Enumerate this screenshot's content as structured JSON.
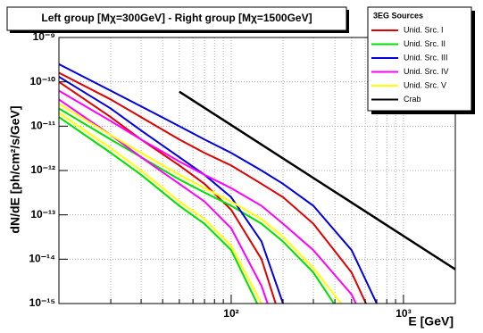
{
  "chart_data": {
    "type": "line",
    "title": "Left group [Mχ=300GeV] - Right group [Mχ=1500GeV]",
    "ylabel": "dN/dE [ph/cm²/s/GeV]",
    "xlabel": "E [GeV]",
    "legend_title": "3EG Sources",
    "legend": "top-right",
    "log_x": true,
    "log_y": true,
    "grid": true,
    "xlim": [
      10,
      2000
    ],
    "ylim": [
      1e-15,
      1e-09
    ],
    "xticks": [
      {
        "value": 100,
        "label": "10²"
      },
      {
        "value": 1000,
        "label": "10³"
      }
    ],
    "xminor": [
      20,
      30,
      40,
      50,
      60,
      70,
      80,
      90,
      200,
      300,
      400,
      500,
      600,
      700,
      800,
      900
    ],
    "yticks": [
      {
        "value": 1e-15,
        "label": "10⁻¹⁵"
      },
      {
        "value": 1e-14,
        "label": "10⁻¹⁴"
      },
      {
        "value": 1e-13,
        "label": "10⁻¹³"
      },
      {
        "value": 1e-12,
        "label": "10⁻¹²"
      },
      {
        "value": 1e-11,
        "label": "10⁻¹¹"
      },
      {
        "value": 1e-10,
        "label": "10⁻¹⁰"
      },
      {
        "value": 1e-09,
        "label": "10⁻⁹"
      }
    ],
    "x": [
      10,
      20,
      30,
      50,
      70,
      100,
      150,
      200,
      300,
      500,
      700
    ],
    "series": [
      {
        "name": "Unid. Src. I",
        "color": "#e00000",
        "values": [
          1e-10,
          1.6e-11,
          5e-12,
          1.3e-12,
          5e-13,
          1.3e-13,
          1e-14,
          3e-16,
          null,
          null,
          null
        ],
        "values_right": [
          1.6e-10,
          4e-11,
          1.6e-11,
          5e-12,
          2.5e-12,
          1.3e-12,
          5e-13,
          2.5e-13,
          6.3e-14,
          5e-15,
          3e-16
        ]
      },
      {
        "name": "Unid. Src. II",
        "color": "#00e000",
        "values": [
          1.6e-11,
          2.5e-12,
          8e-13,
          1.6e-13,
          6.3e-14,
          1.6e-14,
          6.3e-16,
          null,
          null,
          null,
          null
        ],
        "values_right": [
          2.5e-11,
          5e-12,
          2e-12,
          6.3e-13,
          3.2e-13,
          1.6e-13,
          6.3e-14,
          2.5e-14,
          5e-15,
          2.5e-16,
          null
        ]
      },
      {
        "name": "Unid. Src. III",
        "color": "#0000e0",
        "values": [
          1.3e-10,
          2.5e-11,
          8e-12,
          2e-12,
          8e-13,
          2.5e-13,
          2.5e-14,
          1e-15,
          null,
          null,
          null
        ],
        "values_right": [
          2.5e-10,
          6.3e-11,
          2.8e-11,
          1e-11,
          5e-12,
          2.5e-12,
          1e-12,
          5e-13,
          1.6e-13,
          1.6e-14,
          1e-15
        ]
      },
      {
        "name": "Unid. Src. IV",
        "color": "#ff00ff",
        "values": [
          4e-11,
          6.3e-12,
          2e-12,
          5e-13,
          2e-13,
          5e-14,
          2.5e-15,
          1e-16,
          null,
          null,
          null
        ],
        "values_right": [
          6.3e-11,
          1.3e-11,
          5e-12,
          1.6e-12,
          8e-13,
          4e-13,
          1.6e-13,
          6.3e-14,
          1.6e-14,
          1.6e-15,
          1e-16
        ]
      },
      {
        "name": "Unid. Src. V",
        "color": "#ffff00",
        "values": [
          2e-11,
          3.2e-12,
          1e-12,
          2e-13,
          8e-14,
          2e-14,
          1e-15,
          null,
          null,
          null,
          null
        ],
        "values_right": [
          3.2e-11,
          6.3e-12,
          2.5e-12,
          8e-13,
          4e-13,
          2e-13,
          8e-14,
          3.2e-14,
          6.3e-15,
          5e-16,
          null
        ]
      },
      {
        "name": "Crab",
        "color": "#000000",
        "x": [
          50,
          2000
        ],
        "values": [
          6e-11,
          5.9e-15
        ]
      }
    ]
  }
}
